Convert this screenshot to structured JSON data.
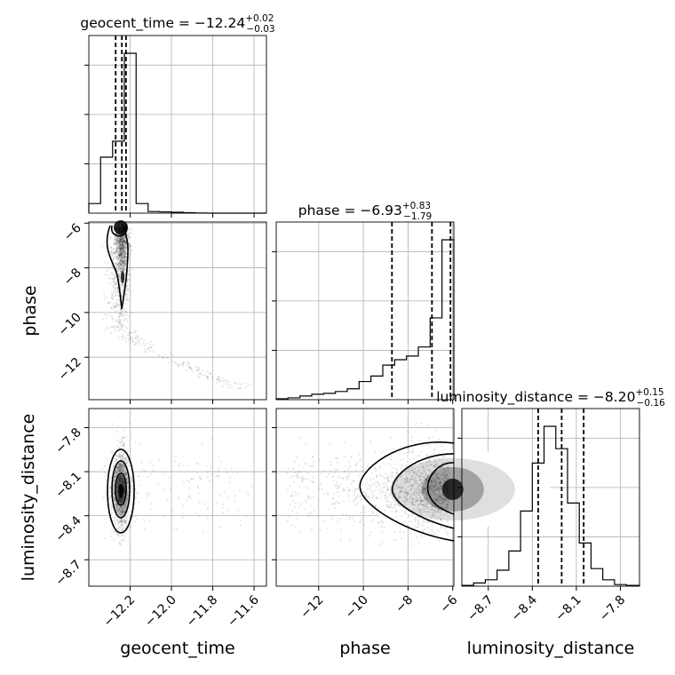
{
  "chart_data": {
    "type": "corner",
    "parameters": [
      "geocent_time",
      "phase",
      "luminosity_distance"
    ],
    "titles": [
      {
        "param": "geocent_time",
        "prefix": "geocent_time = ",
        "median": "−12.24",
        "plus": "+0.02",
        "minus": "−0.03"
      },
      {
        "param": "phase",
        "prefix": "phase = ",
        "median": "−6.93",
        "plus": "+0.83",
        "minus": "−1.79"
      },
      {
        "param": "luminosity_distance",
        "prefix": "luminosity_distance = ",
        "median": "−8.20",
        "plus": "+0.15",
        "minus": "−0.16"
      }
    ],
    "axes": {
      "geocent_time": {
        "range": [
          -12.4,
          -11.54
        ],
        "ticks": [
          -12.2,
          -12.0,
          -11.8,
          -11.6
        ],
        "tick_labels": [
          "−12.2",
          "−12.0",
          "−11.8",
          "−11.6"
        ]
      },
      "phase": {
        "range": [
          -13.9,
          -5.95
        ],
        "ticks": [
          -12,
          -10,
          -8,
          -6
        ],
        "tick_labels": [
          "−12",
          "−10",
          "−8",
          "−6"
        ]
      },
      "luminosity_distance": {
        "range": [
          -8.88,
          -7.67
        ],
        "ticks": [
          -8.7,
          -8.4,
          -8.1,
          -7.8
        ],
        "tick_labels": [
          "−8.7",
          "−8.4",
          "−8.1",
          "−7.8"
        ]
      }
    },
    "marginals": {
      "geocent_time": {
        "bin_edges": [
          -12.4,
          -12.343,
          -12.285,
          -12.228,
          -12.171,
          -12.113,
          -12.056,
          -11.999,
          -11.941,
          -11.884,
          -11.827,
          -11.769,
          -11.712,
          -11.655,
          -11.597,
          -11.54
        ],
        "counts": [
          6,
          35,
          45,
          100,
          6,
          1,
          0.8,
          0.6,
          0.3,
          0.1,
          0,
          0,
          0,
          0,
          0
        ],
        "quantiles": [
          -12.27,
          -12.24,
          -12.22
        ]
      },
      "phase": {
        "bin_edges": [
          -13.9,
          -13.37,
          -12.84,
          -12.31,
          -11.78,
          -11.25,
          -10.72,
          -10.19,
          -9.66,
          -9.13,
          -8.6,
          -8.07,
          -7.54,
          -7.01,
          -6.48,
          -5.95
        ],
        "counts": [
          0.5,
          1,
          2,
          3,
          3.5,
          4.5,
          6,
          10,
          13,
          19,
          22,
          24,
          29,
          45,
          88
        ],
        "quantiles": [
          -8.72,
          -6.93,
          -6.1
        ]
      },
      "luminosity_distance": {
        "bin_edges": [
          -8.88,
          -8.8,
          -8.72,
          -8.64,
          -8.56,
          -8.48,
          -8.4,
          -8.32,
          -8.24,
          -8.16,
          -8.08,
          -8,
          -7.92,
          -7.84,
          -7.76,
          -7.67
        ],
        "counts": [
          0.5,
          2,
          4,
          10,
          22,
          47,
          77,
          100,
          86,
          52,
          27,
          11,
          4,
          1,
          0.5
        ],
        "quantiles": [
          -8.36,
          -8.2,
          -8.05
        ]
      }
    },
    "grid": true,
    "show_titles": true
  }
}
